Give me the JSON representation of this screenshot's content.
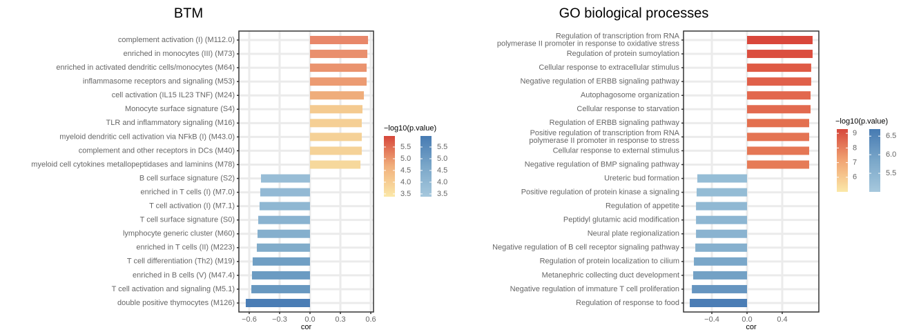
{
  "chart_data": [
    {
      "type": "bar",
      "orientation": "horizontal",
      "title": "BTM",
      "xlabel": "cor",
      "grid": true,
      "categories": [
        "complement activation (I) (M112.0)",
        "enriched in monocytes (III) (M73)",
        "enriched in activated dendritic cells/monocytes (M64)",
        "inflammasome receptors and signaling (M53)",
        "cell activation (IL15 IL23 TNF) (M24)",
        "Monocyte surface signature (S4)",
        "TLR and inflammatory signaling (M16)",
        "myeloid dendritic cell activation via NFkB (I) (M43.0)",
        "complement and other receptors in DCs (M40)",
        "myeloid cell cytokines metallopeptidases and laminins (M78)",
        "B cell surface signature (S2)",
        "enriched in T cells (I) (M7.0)",
        "T cell activation (I) (M7.1)",
        "T cell surface signature (S0)",
        "lymphocyte generic cluster (M60)",
        "enriched in T cells (II) (M223)",
        "T cell differentiation (Th2) (M19)",
        "enriched in B cells (V) (M47.4)",
        "T cell activation and signaling (M5.1)",
        "double positive thymocytes (M126)"
      ],
      "values": [
        0.573,
        0.566,
        0.559,
        0.559,
        0.532,
        0.518,
        0.511,
        0.511,
        0.511,
        0.498,
        -0.484,
        -0.491,
        -0.498,
        -0.511,
        -0.518,
        -0.525,
        -0.566,
        -0.573,
        -0.579,
        -0.634
      ],
      "colors": [
        "#e8876a",
        "#e98f6d",
        "#ea936e",
        "#ec9b72",
        "#efad7b",
        "#f4ca90",
        "#f5cf95",
        "#f5d197",
        "#f5d298",
        "#f6d89c",
        "#98bdd6",
        "#93b9d4",
        "#8fb7d2",
        "#8ab3d0",
        "#85afcd",
        "#81acca",
        "#709fc4",
        "#6b9bc2",
        "#6898c0",
        "#4a7db5"
      ],
      "xlim": [
        -0.702,
        0.627
      ],
      "xticks": [
        {
          "value": -0.6,
          "label": "−0.6"
        },
        {
          "value": -0.3,
          "label": "−0.3"
        },
        {
          "value": 0,
          "label": "0.0"
        },
        0.3,
        0.6
      ],
      "legend": {
        "title": "−log10(p.value)",
        "colorbars": [
          {
            "palette": [
              "#fbe8a8",
              "#f1b07c",
              "#d6473b"
            ],
            "lim": [
              3.38,
              5.97
            ],
            "ticks": [
              3.5,
              {
                "value": 4,
                "label": "4.0"
              },
              4.5,
              {
                "value": 5,
                "label": "5.0"
              },
              5.5
            ]
          },
          {
            "palette": [
              "#a6c8dd",
              "#7aa7c9",
              "#467ab2"
            ],
            "lim": [
              3.38,
              5.97
            ],
            "ticks": [
              3.5,
              {
                "value": 4,
                "label": "4.0"
              },
              4.5,
              {
                "value": 5,
                "label": "5.0"
              },
              5.5
            ]
          }
        ]
      }
    },
    {
      "type": "bar",
      "orientation": "horizontal",
      "title": "GO biological processes",
      "xlabel": "cor",
      "grid": true,
      "categories": [
        [
          "Regulation of transcription from RNA",
          "polymerase II promoter in response to oxidative stress"
        ],
        "Regulation of protein sumoylation",
        "Cellular response to extracellular stimulus",
        "Negative regulation of ERBB signaling pathway",
        "Autophagosome organization",
        "Cellular response to starvation",
        "Regulation of ERBB signaling pathway",
        [
          "Positive regulation of transcription from RNA",
          "polymerase II promoter in response to stress"
        ],
        "Cellular response to external stimulus",
        "Negative regulation of BMP signaling pathway",
        "Ureteric bud formation",
        "Positive regulation of protein kinase a signaling",
        "Regulation of appetite",
        "Peptidyl glutamic acid modification",
        "Neural plate regionalization",
        "Negative regulation of B cell receptor signaling pathway",
        "Regulation of protein localization to cilium",
        "Metanephric collecting duct development",
        "Negative regulation of immature T cell proliferation",
        "Regulation of response to food"
      ],
      "values": [
        0.745,
        0.745,
        0.729,
        0.729,
        0.722,
        0.722,
        0.706,
        0.706,
        0.706,
        0.706,
        -0.565,
        -0.573,
        -0.58,
        -0.58,
        -0.58,
        -0.588,
        -0.604,
        -0.612,
        -0.627,
        -0.651
      ],
      "colors": [
        "#d9473b",
        "#db4e3f",
        "#df5a45",
        "#e0604a",
        "#e2684e",
        "#e26a4f",
        "#e3704f",
        "#e47453",
        "#e57755",
        "#e67b57",
        "#95bdd6",
        "#94bcd5",
        "#90b8d3",
        "#8db6d2",
        "#8ab3d0",
        "#86b0ce",
        "#7aa7c9",
        "#73a1c5",
        "#6695c0",
        "#4b7db5"
      ],
      "xlim": [
        -0.722,
        0.816
      ],
      "xticks": [
        {
          "value": -0.4,
          "label": "−0.4"
        },
        {
          "value": 0,
          "label": "0.0"
        },
        0.4
      ],
      "legend": {
        "title": "−log10(p.value)",
        "colorbars": [
          {
            "palette": [
              "#fbe8a8",
              "#f1a473",
              "#d6473b"
            ],
            "lim": [
              5.0,
              9.29
            ],
            "ticks": [
              6,
              7,
              8,
              9
            ]
          },
          {
            "palette": [
              "#a6c8dd",
              "#7aa7c9",
              "#467ab2"
            ],
            "lim": [
              5.0,
              6.69
            ],
            "ticks": [
              5.5,
              {
                "value": 6,
                "label": "6.0"
              },
              6.5
            ]
          }
        ]
      }
    }
  ]
}
